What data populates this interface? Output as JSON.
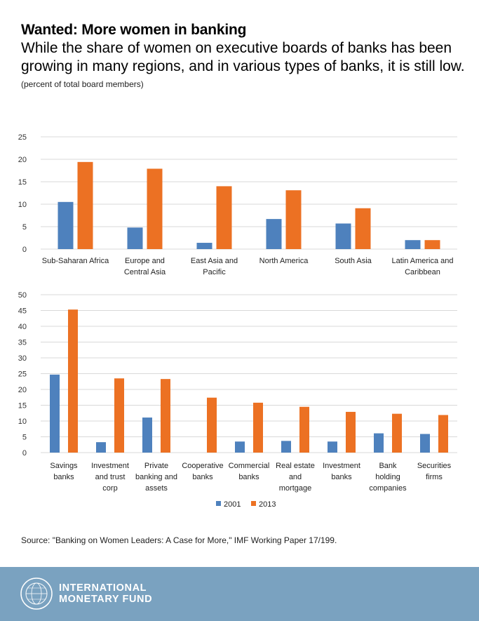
{
  "header": {
    "title": "Wanted: More women in banking",
    "subtitle": "While the share of women on executive boards of banks has been growing in many regions, and in various types of banks, it is still low.",
    "unit": "(percent of total board members)"
  },
  "legend": [
    "2001",
    "2013"
  ],
  "colors": {
    "s2001": "#4e81bd",
    "s2013": "#ec7123",
    "grid": "#d9d9d9",
    "footer": "#7aa2c0"
  },
  "chart_data": [
    {
      "type": "bar",
      "title": "",
      "categories": [
        [
          "Sub-Saharan Africa"
        ],
        [
          "Europe and",
          "Central Asia"
        ],
        [
          "East Asia and",
          "Pacific"
        ],
        [
          "North America"
        ],
        [
          "South Asia"
        ],
        [
          "Latin America and",
          "Caribbean"
        ]
      ],
      "series": [
        {
          "name": "2001",
          "values": [
            10.5,
            4.8,
            1.4,
            6.7,
            5.7,
            2.0
          ]
        },
        {
          "name": "2013",
          "values": [
            19.4,
            17.9,
            14.0,
            13.1,
            9.1,
            2.0
          ]
        }
      ],
      "ylim": [
        0,
        25
      ],
      "yticks": [
        0,
        5,
        10,
        15,
        20,
        25
      ],
      "grid": true
    },
    {
      "type": "bar",
      "title": "",
      "categories": [
        [
          "Savings",
          "banks"
        ],
        [
          "Investment",
          "and trust",
          "corp"
        ],
        [
          "Private",
          "banking and",
          "assets"
        ],
        [
          "Cooperative",
          "banks"
        ],
        [
          "Commercial",
          "banks"
        ],
        [
          "Real estate",
          "and",
          "mortgage"
        ],
        [
          "Investment",
          "banks"
        ],
        [
          "Bank",
          "holding",
          "companies"
        ],
        [
          "Securities",
          "firms"
        ]
      ],
      "series": [
        {
          "name": "2001",
          "values": [
            24.7,
            3.3,
            11.1,
            0,
            3.5,
            3.7,
            3.5,
            6.1,
            5.9
          ]
        },
        {
          "name": "2013",
          "values": [
            45.3,
            23.5,
            23.3,
            17.4,
            15.8,
            14.5,
            12.9,
            12.3,
            11.9
          ]
        }
      ],
      "ylim": [
        0,
        50
      ],
      "yticks": [
        0,
        5,
        10,
        15,
        20,
        25,
        30,
        35,
        40,
        45,
        50
      ],
      "grid": true,
      "legend_position": "bottom-center"
    }
  ],
  "source": "Source: \"Banking on Women Leaders: A Case for More,\" IMF Working Paper 17/199.",
  "footer": {
    "org_line1": "INTERNATIONAL",
    "org_line2": "MONETARY FUND"
  }
}
